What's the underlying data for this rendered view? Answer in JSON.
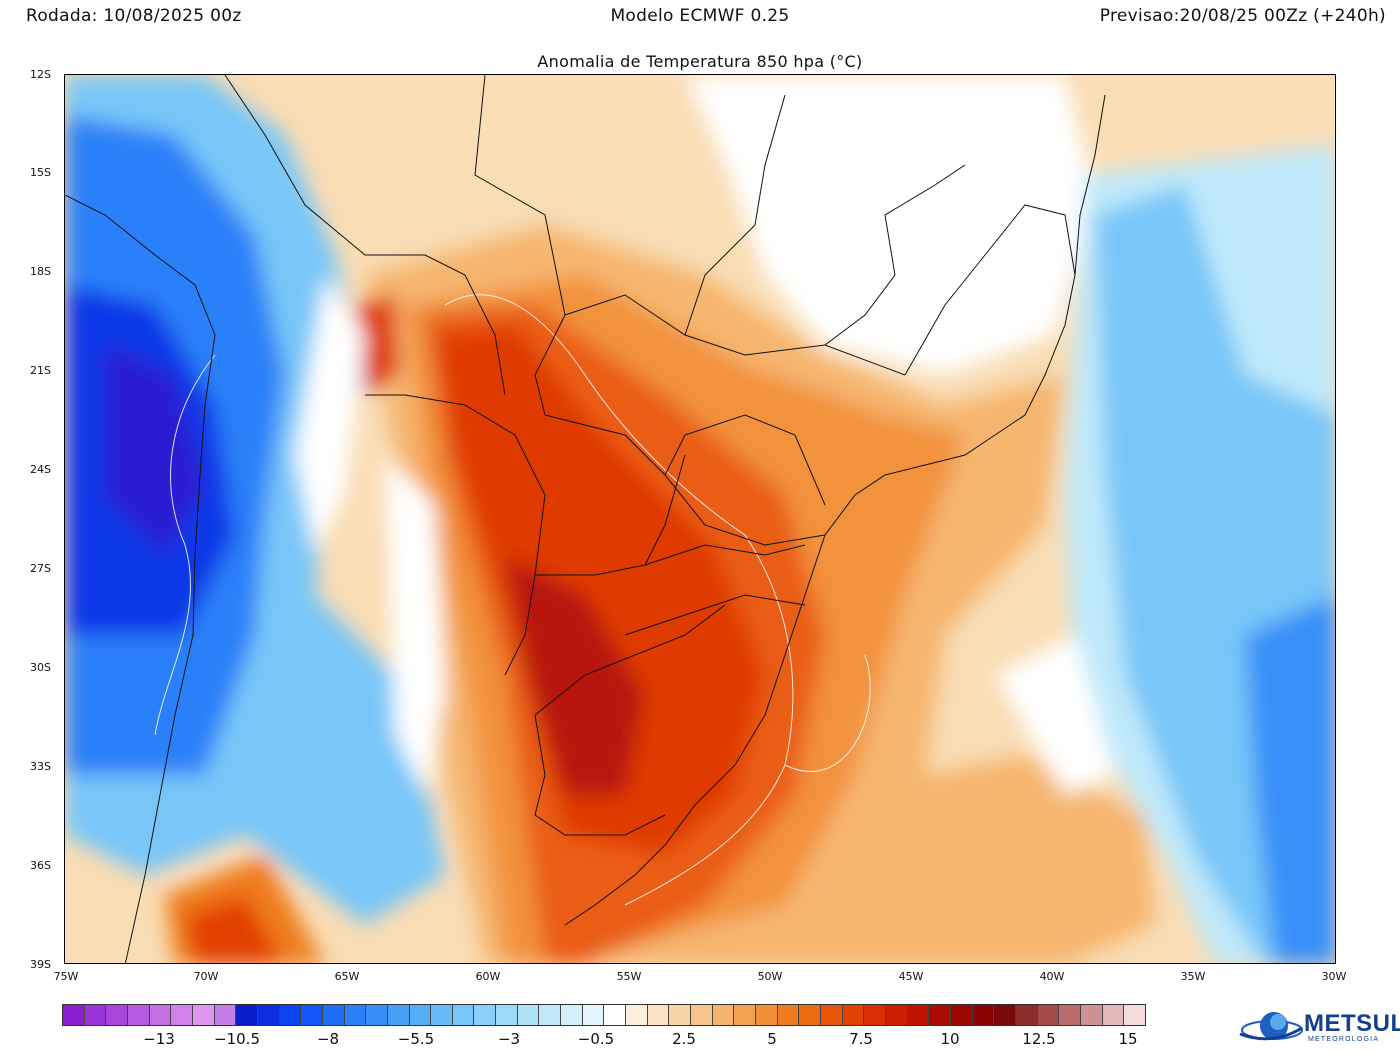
{
  "header": {
    "run": "Rodada: 10/08/2025 00z",
    "model": "Modelo ECMWF 0.25",
    "forecast": "Previsao:20/08/25 00Zz (+240h)"
  },
  "title": "Anomalia de Temperatura 850 hpa (°C)",
  "map": {
    "lat_range": [
      "12S",
      "39S"
    ],
    "lon_range": [
      "75W",
      "30W"
    ],
    "lat_ticks": [
      "12S",
      "15S",
      "18S",
      "21S",
      "24S",
      "27S",
      "30S",
      "33S",
      "36S",
      "39S"
    ],
    "lon_ticks": [
      "75W",
      "70W",
      "65W",
      "60W",
      "55W",
      "50W",
      "45W",
      "40W",
      "35W",
      "30W"
    ]
  },
  "colorbar": {
    "labels": [
      "−13",
      "−10.5",
      "−8",
      "−5.5",
      "−3",
      "−0.5",
      "2.5",
      "5",
      "7.5",
      "10",
      "12.5",
      "15"
    ],
    "colors": [
      "#8a1fd1",
      "#9a33d8",
      "#a847dd",
      "#b65be1",
      "#c46fe6",
      "#d182ea",
      "#de95ef",
      "#c37ee8",
      "#0a1ec8",
      "#0a2ee0",
      "#0a44f0",
      "#1158f7",
      "#1e6cf8",
      "#2a80f8",
      "#3790f8",
      "#45a0f8",
      "#55aef8",
      "#66bbf8",
      "#78c6f8",
      "#8ad0f8",
      "#9cd9f8",
      "#ade2f9",
      "#bfe9fa",
      "#d1f0fb",
      "#e2f6fc",
      "#ffffff",
      "#fdeedd",
      "#fbe3c6",
      "#f9d5a8",
      "#f7c58a",
      "#f5b46d",
      "#f3a251",
      "#f19036",
      "#ef7d1f",
      "#ec6a10",
      "#e85508",
      "#e24104",
      "#d82e03",
      "#cc1f02",
      "#be1302",
      "#ad0b02",
      "#9c0602",
      "#8a0404",
      "#7a0a0a",
      "#8e2b2b",
      "#a44a4a",
      "#ba6c6c",
      "#cf9292",
      "#e2b8b8",
      "#f4dcdc"
    ]
  },
  "logo": {
    "name": "METSUL",
    "sub": "METEOROLOGIA"
  }
}
